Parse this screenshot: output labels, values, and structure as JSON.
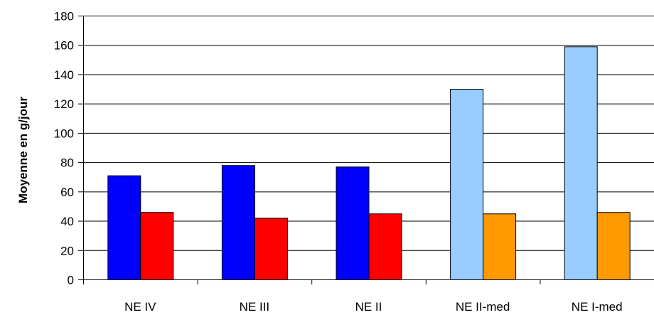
{
  "chart_data": {
    "type": "bar",
    "title": "",
    "xlabel": "",
    "ylabel": "Moyenne en g/jour",
    "ylim": [
      0,
      180
    ],
    "yticks": [
      0,
      20,
      40,
      60,
      80,
      100,
      120,
      140,
      160,
      180
    ],
    "grid": true,
    "categories": [
      "NE IV",
      "NE III",
      "NE II",
      "NE II-med",
      "NE I-med"
    ],
    "series": [
      {
        "values": [
          71,
          78,
          77,
          130,
          159
        ]
      },
      {
        "values": [
          46,
          42,
          45,
          45,
          46
        ]
      }
    ],
    "bar_colors": [
      [
        "#0000ff",
        "#0000ff",
        "#0000ff",
        "#99ccff",
        "#99ccff"
      ],
      [
        "#ff0000",
        "#ff0000",
        "#ff0000",
        "#ff9900",
        "#ff9900"
      ]
    ]
  }
}
